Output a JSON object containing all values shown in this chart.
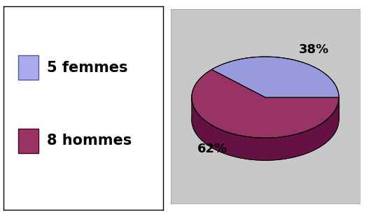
{
  "slices": [
    38,
    62
  ],
  "labels": [
    "5 femmes",
    "8 hommes"
  ],
  "colors_top": [
    "#9999dd",
    "#993366"
  ],
  "colors_side": [
    "#7777bb",
    "#661144"
  ],
  "pct_labels": [
    "38%",
    "62%"
  ],
  "legend_colors": [
    "#aaaaee",
    "#993366"
  ],
  "background_color": "#ffffff",
  "pie_bg_color": "#c8c8c8",
  "legend_fontsize": 15,
  "pct_fontsize": 13,
  "startangle": 0
}
